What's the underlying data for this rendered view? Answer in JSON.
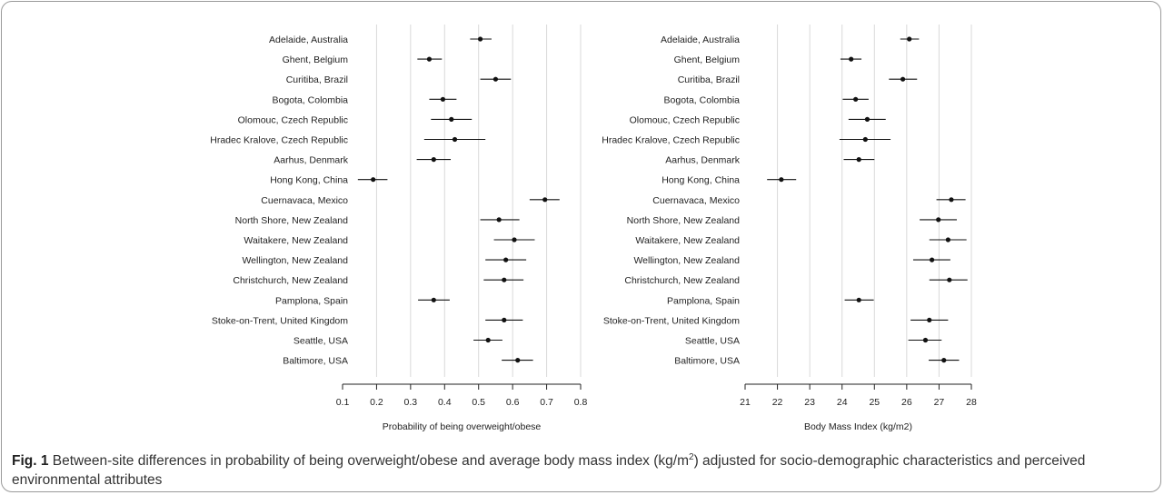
{
  "caption": {
    "label": "Fig. 1",
    "text_before": " Between-site differences in probability of being overweight/obese and average body mass index (kg/m",
    "sup": "2",
    "text_after": ") adjusted for socio-demographic characteristics and perceived environmental attributes"
  },
  "chart_data": [
    {
      "type": "scatter",
      "subtype": "forest-plot",
      "xlabel": "Probability of being overweight/obese",
      "ylabel": "",
      "xlim": [
        0.1,
        0.8
      ],
      "xticks": [
        "0.1",
        "0.2",
        "0.3",
        "0.4",
        "0.5",
        "0.6",
        "0.7",
        "0.8"
      ],
      "grid": "vertical",
      "categories": [
        "Adelaide, Australia",
        "Ghent, Belgium",
        "Curitiba, Brazil",
        "Bogota, Colombia",
        "Olomouc, Czech Republic",
        "Hradec Kralove, Czech Republic",
        "Aarhus, Denmark",
        "Hong Kong, China",
        "Cuernavaca, Mexico",
        "North Shore, New Zealand",
        "Waitakere, New Zealand",
        "Wellington, New Zealand",
        "Christchurch, New Zealand",
        "Pamplona, Spain",
        "Stoke-on-Trent, United Kingdom",
        "Seattle, USA",
        "Baltimore, USA"
      ],
      "estimates": [
        0.505,
        0.355,
        0.55,
        0.395,
        0.42,
        0.43,
        0.368,
        0.19,
        0.695,
        0.56,
        0.605,
        0.58,
        0.575,
        0.368,
        0.575,
        0.528,
        0.615
      ],
      "lower": [
        0.475,
        0.32,
        0.505,
        0.355,
        0.36,
        0.34,
        0.318,
        0.145,
        0.65,
        0.505,
        0.545,
        0.52,
        0.515,
        0.322,
        0.52,
        0.485,
        0.568
      ],
      "upper": [
        0.538,
        0.392,
        0.595,
        0.435,
        0.48,
        0.52,
        0.418,
        0.232,
        0.738,
        0.62,
        0.665,
        0.64,
        0.632,
        0.415,
        0.63,
        0.57,
        0.66
      ]
    },
    {
      "type": "scatter",
      "subtype": "forest-plot",
      "xlabel": "Body Mass Index (kg/m2)",
      "ylabel": "",
      "xlim": [
        21,
        28
      ],
      "xticks": [
        "21",
        "22",
        "23",
        "24",
        "25",
        "26",
        "27",
        "28"
      ],
      "grid": "vertical",
      "categories": [
        "Adelaide, Australia",
        "Ghent, Belgium",
        "Curitiba, Brazil",
        "Bogota, Colombia",
        "Olomouc, Czech Republic",
        "Hradec Kralove, Czech Republic",
        "Aarhus, Denmark",
        "Hong Kong, China",
        "Cuernavaca, Mexico",
        "North Shore, New Zealand",
        "Waitakere, New Zealand",
        "Wellington, New Zealand",
        "Christchurch, New Zealand",
        "Pamplona, Spain",
        "Stoke-on-Trent, United Kingdom",
        "Seattle, USA",
        "Baltimore, USA"
      ],
      "estimates": [
        26.08,
        24.28,
        25.88,
        24.42,
        24.78,
        24.72,
        24.52,
        22.12,
        27.38,
        26.98,
        27.28,
        26.78,
        27.32,
        24.52,
        26.7,
        26.58,
        27.15
      ],
      "lower": [
        25.8,
        23.95,
        25.45,
        24.02,
        24.2,
        23.92,
        24.05,
        21.68,
        26.92,
        26.4,
        26.7,
        26.2,
        26.7,
        24.08,
        26.12,
        26.05,
        26.68
      ],
      "upper": [
        26.38,
        24.6,
        26.32,
        24.82,
        25.35,
        25.5,
        25.0,
        22.58,
        27.82,
        27.55,
        27.85,
        27.35,
        27.88,
        24.98,
        27.28,
        27.08,
        27.62
      ]
    }
  ]
}
